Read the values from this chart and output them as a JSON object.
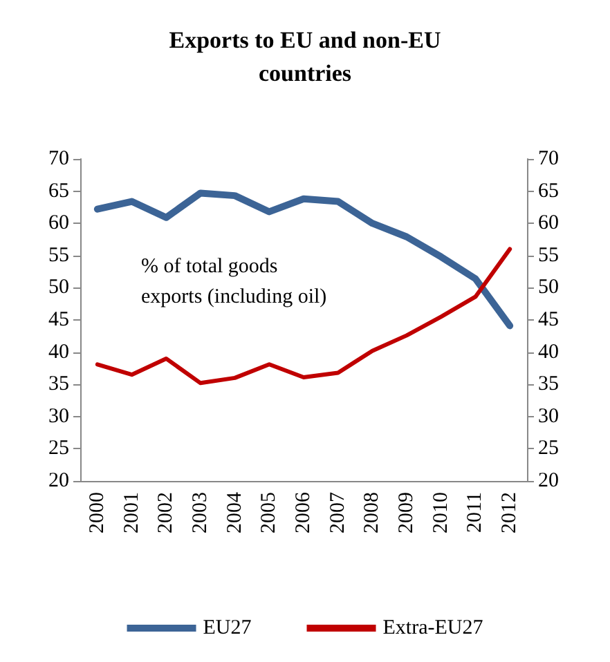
{
  "chart_data": {
    "type": "line",
    "title": "Exports to EU and non-EU\ncountries",
    "categories": [
      "2000",
      "2001",
      "2002",
      "2003",
      "2004",
      "2005",
      "2006",
      "2007",
      "2008",
      "2009",
      "2010",
      "2011",
      "2012"
    ],
    "series": [
      {
        "name": "EU27",
        "color": "#3c6496",
        "values": [
          62.2,
          63.4,
          60.9,
          64.7,
          64.3,
          61.8,
          63.8,
          63.4,
          60.0,
          57.9,
          54.8,
          51.4,
          44.1
        ]
      },
      {
        "name": "Extra-EU27",
        "color": "#c00000",
        "values": [
          38.1,
          36.5,
          39.0,
          35.2,
          36.0,
          38.1,
          36.1,
          36.8,
          40.2,
          42.6,
          45.5,
          48.6,
          56.0
        ]
      }
    ],
    "ylim": [
      20,
      70
    ],
    "yticks": [
      20,
      25,
      30,
      35,
      40,
      45,
      50,
      55,
      60,
      65,
      70
    ],
    "y2lim": [
      20,
      70
    ],
    "y2ticks": [
      20,
      25,
      30,
      35,
      40,
      45,
      50,
      55,
      60,
      65,
      70
    ],
    "annotations": [
      "% of total goods\nexports (including oil)"
    ],
    "grid": false,
    "legend": "bottom",
    "marker": "none",
    "line_style": "solid"
  }
}
